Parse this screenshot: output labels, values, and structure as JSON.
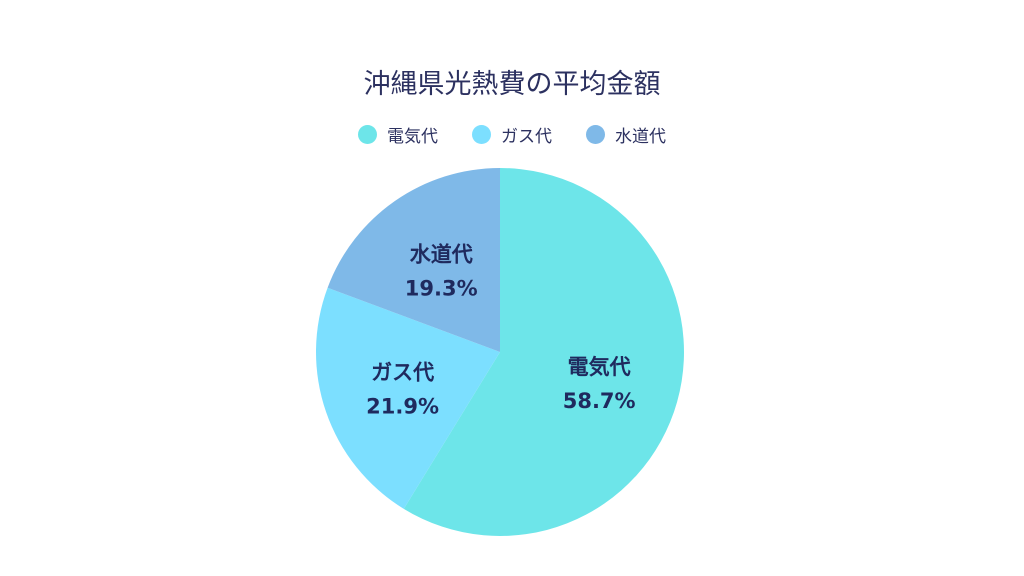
{
  "chart_data": {
    "type": "pie",
    "title": "沖縄県光熱費の平均金額",
    "legend_position": "top",
    "series": [
      {
        "name": "電気代",
        "value": 58.7,
        "label": "58.7%",
        "color": "#6de5e9"
      },
      {
        "name": "ガス代",
        "value": 21.9,
        "label": "21.9%",
        "color": "#7cdfff"
      },
      {
        "name": "水道代",
        "value": 19.3,
        "label": "19.3%",
        "color": "#7fb9e8"
      }
    ],
    "start_angle": "top",
    "direction": "clockwise"
  }
}
